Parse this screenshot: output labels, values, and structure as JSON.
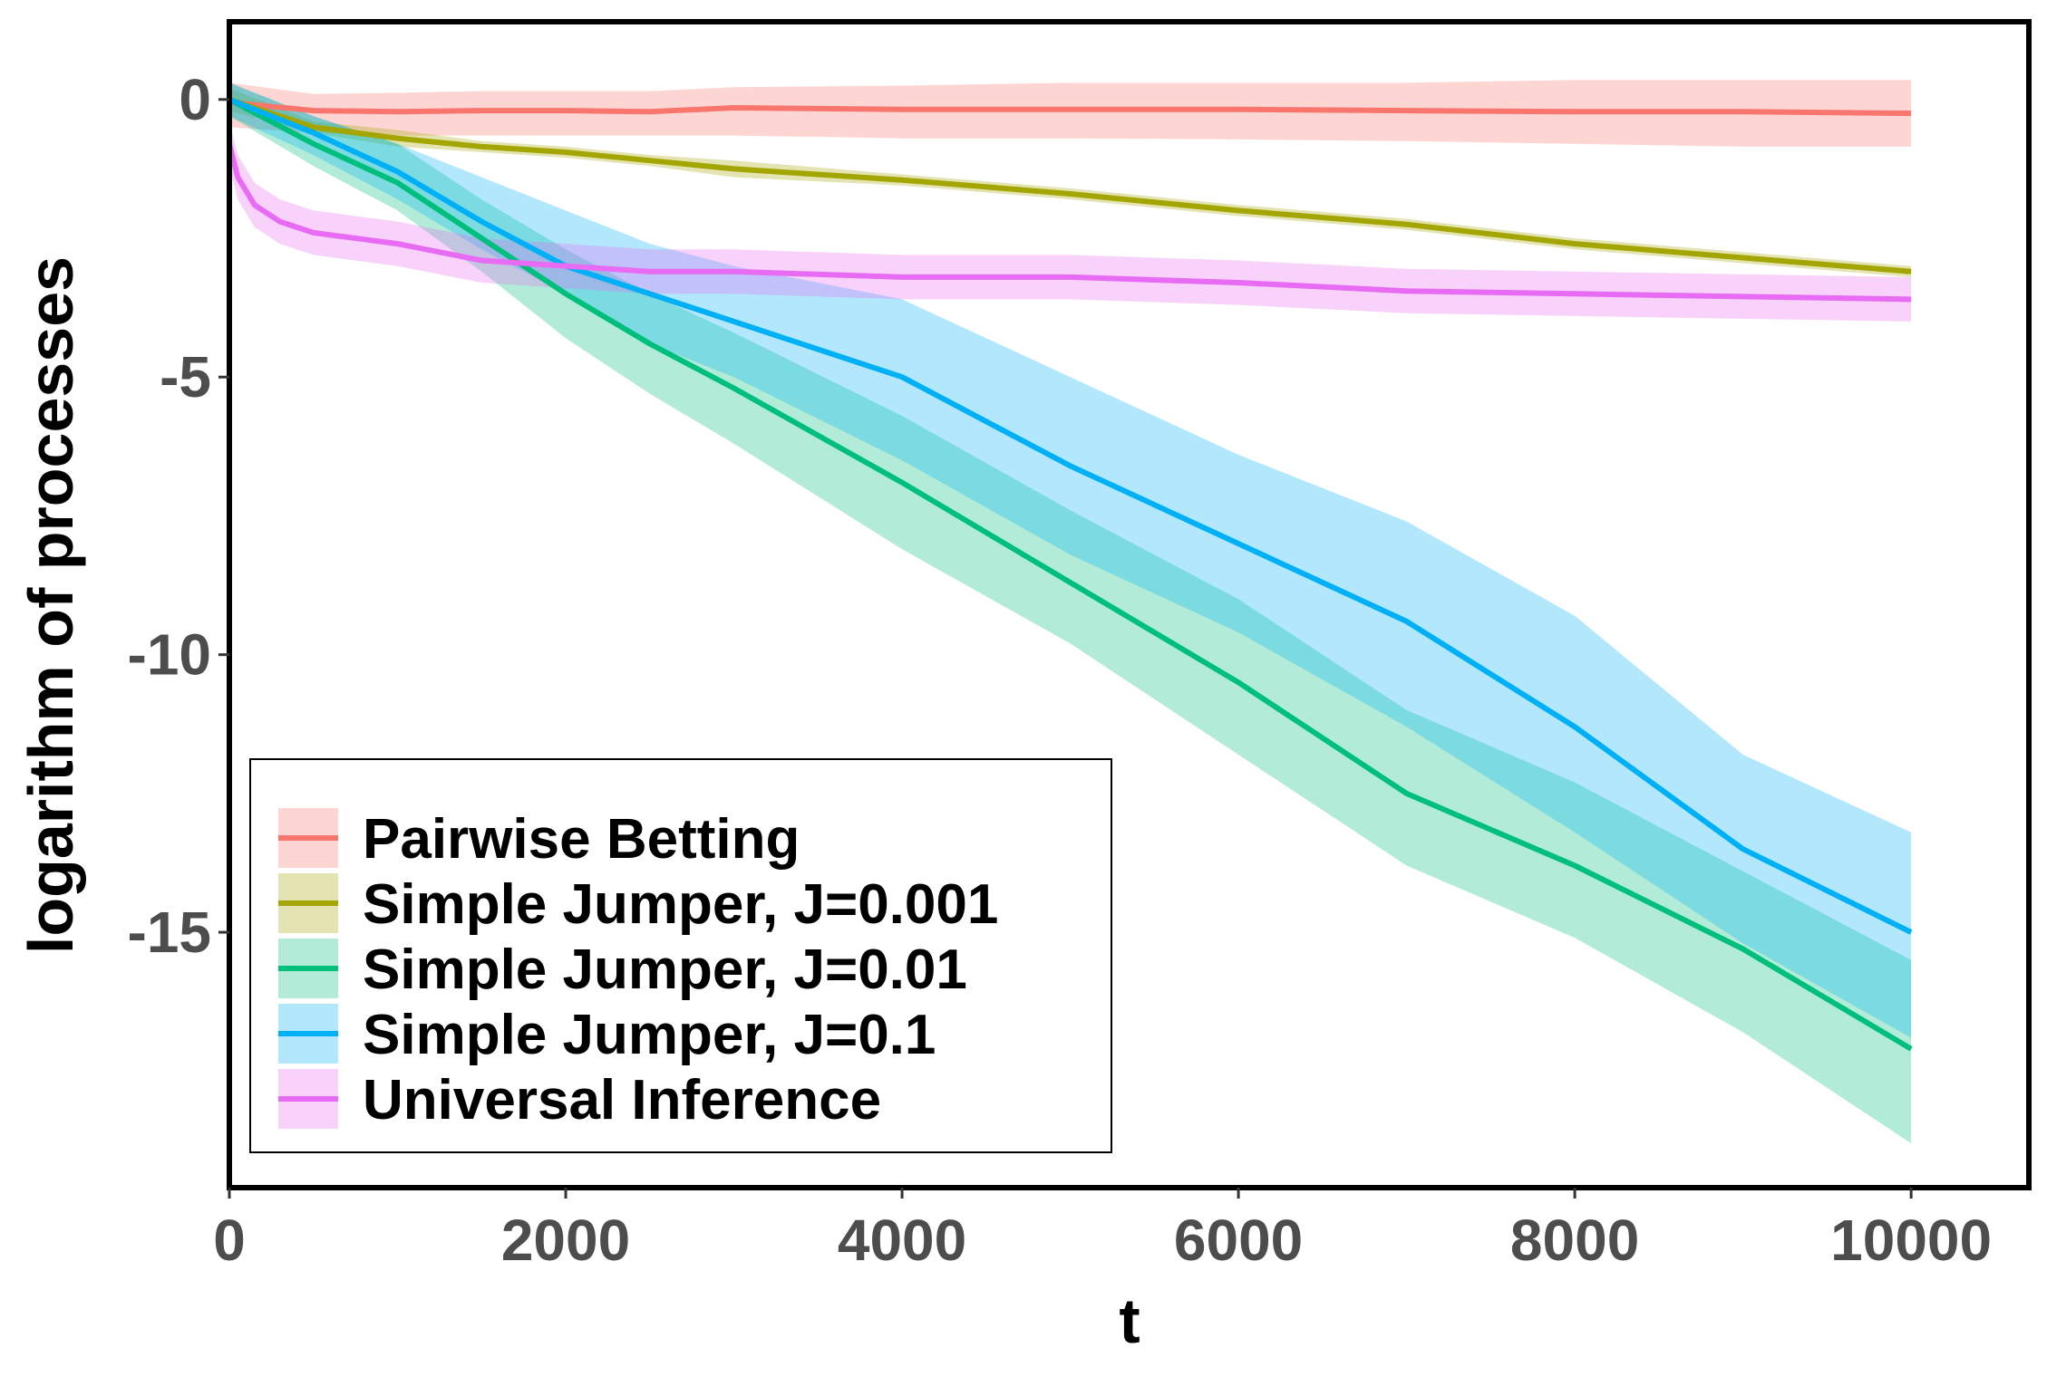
{
  "chart_data": {
    "type": "line",
    "xlabel": "t",
    "ylabel": "logarithm of processes",
    "xlim": [
      0,
      10700
    ],
    "ylim": [
      -19.6,
      1.4
    ],
    "x_ticks": [
      0,
      2000,
      4000,
      6000,
      8000,
      10000
    ],
    "y_ticks": [
      0,
      -5,
      -10,
      -15
    ],
    "x_tick_labels": [
      "0",
      "2000",
      "4000",
      "6000",
      "8000",
      "10000"
    ],
    "y_tick_labels": [
      "0",
      "-5",
      "-10",
      "-15"
    ],
    "grid": false,
    "legend_position": "bottom-left",
    "series": [
      {
        "name": "Pairwise Betting",
        "color": "#F8766D",
        "x": [
          0,
          500,
          1000,
          1500,
          2000,
          2500,
          3000,
          4000,
          5000,
          6000,
          7000,
          8000,
          9000,
          10000
        ],
        "mean": [
          -0.05,
          -0.2,
          -0.22,
          -0.2,
          -0.2,
          -0.22,
          -0.15,
          -0.18,
          -0.18,
          -0.18,
          -0.2,
          -0.22,
          -0.22,
          -0.25
        ],
        "lower": [
          -0.5,
          -0.6,
          -0.65,
          -0.65,
          -0.65,
          -0.65,
          -0.65,
          -0.7,
          -0.7,
          -0.72,
          -0.75,
          -0.8,
          -0.85,
          -0.85
        ],
        "upper": [
          0.3,
          0.1,
          0.12,
          0.15,
          0.15,
          0.15,
          0.22,
          0.25,
          0.3,
          0.3,
          0.3,
          0.35,
          0.35,
          0.35
        ]
      },
      {
        "name": "Simple Jumper, J=0.001",
        "color": "#A3A500",
        "x": [
          0,
          500,
          1000,
          1500,
          2000,
          2500,
          3000,
          4000,
          5000,
          6000,
          7000,
          8000,
          9000,
          10000
        ],
        "mean": [
          0,
          -0.5,
          -0.7,
          -0.85,
          -0.95,
          -1.1,
          -1.25,
          -1.45,
          -1.7,
          -2.0,
          -2.25,
          -2.6,
          -2.85,
          -3.1
        ],
        "lower": [
          -0.2,
          -0.6,
          -0.85,
          -0.95,
          -1.05,
          -1.2,
          -1.4,
          -1.55,
          -1.8,
          -2.1,
          -2.35,
          -2.7,
          -2.95,
          -3.2
        ],
        "upper": [
          0.2,
          -0.4,
          -0.55,
          -0.75,
          -0.85,
          -1.0,
          -1.1,
          -1.35,
          -1.6,
          -1.9,
          -2.15,
          -2.5,
          -2.75,
          -3.0
        ]
      },
      {
        "name": "Simple Jumper, J=0.01",
        "color": "#00BF7D",
        "x": [
          0,
          500,
          1000,
          1500,
          2000,
          2500,
          3000,
          4000,
          5000,
          6000,
          7000,
          8000,
          9000,
          10000
        ],
        "mean": [
          0,
          -0.8,
          -1.5,
          -2.5,
          -3.5,
          -4.4,
          -5.2,
          -6.9,
          -8.7,
          -10.5,
          -12.5,
          -13.8,
          -15.3,
          -17.1
        ],
        "lower": [
          -0.3,
          -1.2,
          -2.0,
          -3.1,
          -4.3,
          -5.3,
          -6.2,
          -8.1,
          -9.8,
          -11.8,
          -13.8,
          -15.1,
          -16.8,
          -18.8
        ],
        "upper": [
          0.3,
          -0.3,
          -0.8,
          -1.8,
          -2.7,
          -3.5,
          -4.2,
          -5.7,
          -7.4,
          -9.0,
          -11.0,
          -12.3,
          -13.9,
          -15.5
        ]
      },
      {
        "name": "Simple Jumper, J=0.1",
        "color": "#00B0F6",
        "x": [
          0,
          500,
          1000,
          1500,
          2000,
          2500,
          3000,
          4000,
          5000,
          6000,
          7000,
          8000,
          9000,
          10000
        ],
        "mean": [
          0,
          -0.6,
          -1.3,
          -2.2,
          -3.0,
          -3.5,
          -4.0,
          -5.0,
          -6.6,
          -8.0,
          -9.4,
          -11.3,
          -13.5,
          -15.0
        ],
        "lower": [
          -0.3,
          -1.0,
          -1.8,
          -2.7,
          -3.5,
          -4.4,
          -5.0,
          -6.5,
          -8.2,
          -9.6,
          -11.3,
          -13.2,
          -15.2,
          -16.9
        ],
        "upper": [
          0.3,
          -0.3,
          -0.8,
          -1.4,
          -2.0,
          -2.6,
          -3.0,
          -3.6,
          -5.0,
          -6.4,
          -7.6,
          -9.3,
          -11.8,
          -13.2
        ]
      },
      {
        "name": "Universal Inference",
        "color": "#E76BF3",
        "x": [
          0,
          50,
          150,
          300,
          500,
          1000,
          1500,
          2000,
          2500,
          3000,
          4000,
          5000,
          6000,
          7000,
          8000,
          9000,
          10000
        ],
        "mean": [
          -0.8,
          -1.4,
          -1.9,
          -2.2,
          -2.4,
          -2.6,
          -2.9,
          -3.0,
          -3.1,
          -3.1,
          -3.2,
          -3.2,
          -3.3,
          -3.45,
          -3.5,
          -3.55,
          -3.6
        ],
        "lower": [
          -1.2,
          -1.8,
          -2.3,
          -2.6,
          -2.8,
          -3.0,
          -3.3,
          -3.4,
          -3.5,
          -3.5,
          -3.6,
          -3.6,
          -3.7,
          -3.85,
          -3.9,
          -3.95,
          -4.0
        ],
        "upper": [
          -0.4,
          -1.0,
          -1.5,
          -1.8,
          -2.0,
          -2.2,
          -2.5,
          -2.6,
          -2.7,
          -2.7,
          -2.8,
          -2.8,
          -2.9,
          -3.05,
          -3.1,
          -3.15,
          -3.2
        ]
      }
    ]
  }
}
